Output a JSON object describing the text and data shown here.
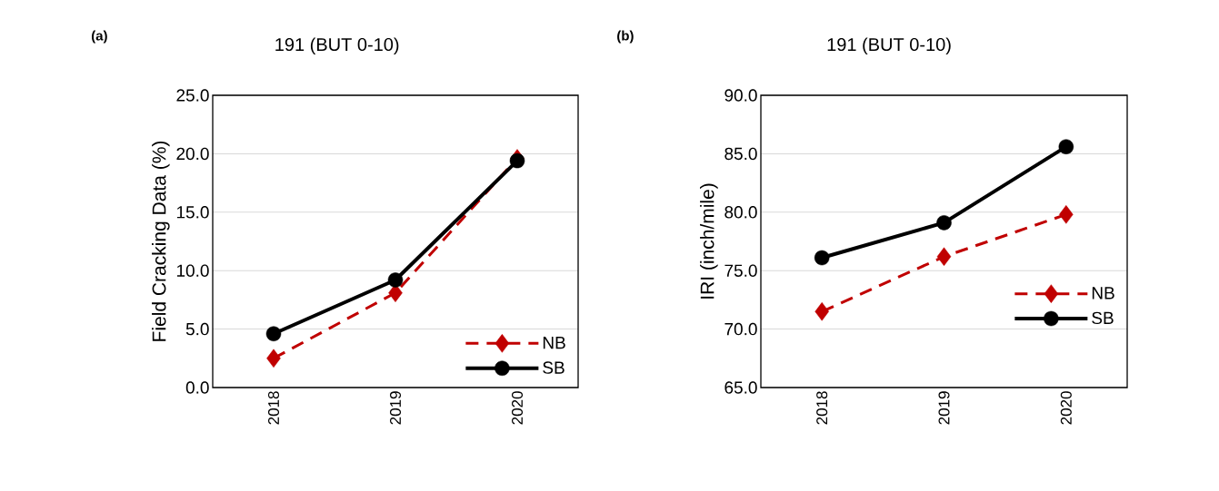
{
  "chart_data": [
    {
      "type": "line",
      "title": "191 (BUT 0-10)",
      "ylabel": "Field Cracking Data (%)",
      "annotations": [
        "(a)"
      ],
      "categories": [
        "2018",
        "2019",
        "2020"
      ],
      "series": [
        {
          "name": "NB",
          "color": "#c00000",
          "values": [
            2.5,
            8.1,
            19.6
          ],
          "marker": "diamond",
          "line_style": "dashed"
        },
        {
          "name": "SB",
          "color": "#000000",
          "values": [
            4.6,
            9.2,
            19.4
          ],
          "marker": "circle",
          "line_style": "solid"
        }
      ],
      "ylim": [
        0,
        25
      ],
      "yticks": [
        {
          "value": 0,
          "label": "0.0"
        },
        {
          "value": 5,
          "label": "5.0"
        },
        {
          "value": 10,
          "label": "10.0"
        },
        {
          "value": 15,
          "label": "15.0"
        },
        {
          "value": 20,
          "label": "20.0"
        },
        {
          "value": 25,
          "label": "25.0"
        }
      ],
      "grid": "y",
      "legend": "bottom right"
    },
    {
      "type": "line",
      "title": "191 (BUT 0-10)",
      "ylabel": "IRI (inch/mile)",
      "annotations": [
        "(b)"
      ],
      "categories": [
        "2018",
        "2019",
        "2020"
      ],
      "series": [
        {
          "name": "NB",
          "color": "#c00000",
          "values": [
            71.5,
            76.2,
            79.8
          ],
          "marker": "diamond",
          "line_style": "dashed"
        },
        {
          "name": "SB",
          "color": "#000000",
          "values": [
            76.1,
            79.1,
            85.6
          ],
          "marker": "circle",
          "line_style": "solid"
        }
      ],
      "ylim": [
        65,
        90
      ],
      "yticks": [
        {
          "value": 65,
          "label": "65.0"
        },
        {
          "value": 70,
          "label": "70.0"
        },
        {
          "value": 75,
          "label": "75.0"
        },
        {
          "value": 80,
          "label": "80.0"
        },
        {
          "value": 85,
          "label": "85.0"
        },
        {
          "value": 90,
          "label": "90.0"
        }
      ],
      "grid": "y",
      "legend": "right"
    }
  ]
}
